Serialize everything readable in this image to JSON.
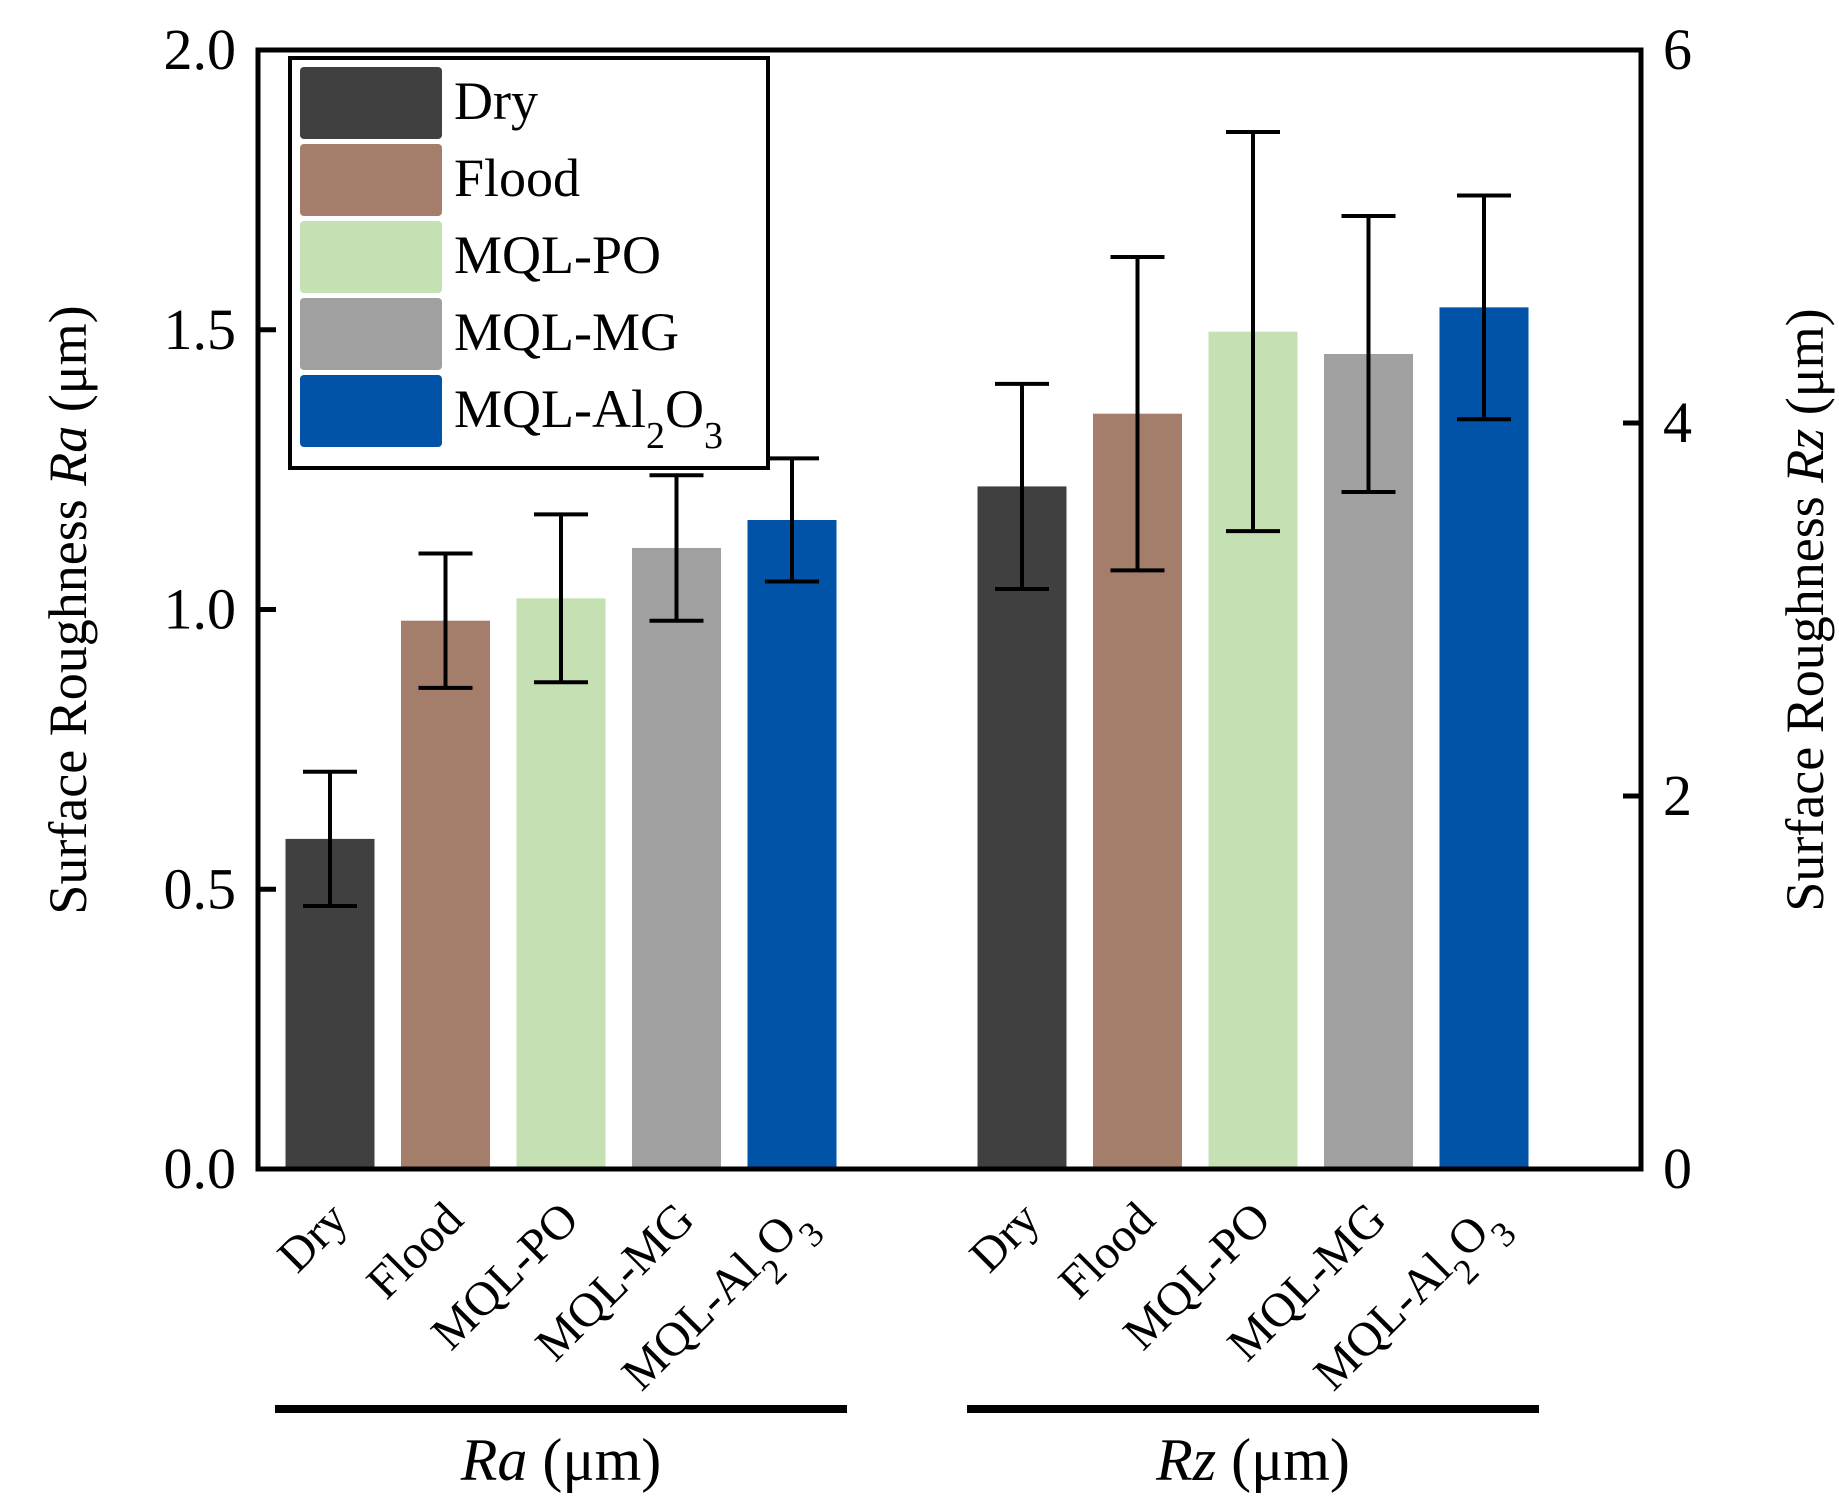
{
  "chart_data": {
    "type": "bar",
    "categories": [
      "Dry",
      "Flood",
      "MQL-PO",
      "MQL-MG",
      "MQL-Al2O3"
    ],
    "category_labels": [
      {
        "main": "Dry"
      },
      {
        "main": "Flood"
      },
      {
        "main": "MQL-PO"
      },
      {
        "main": "MQL-MG"
      },
      {
        "main": "MQL-Al",
        "sub": "2",
        "main2": "O",
        "sub2": "3"
      }
    ],
    "colors": [
      "#404040",
      "#a47e6b",
      "#c5e1b4",
      "#a0a0a0",
      "#0053a6"
    ],
    "left_axis": {
      "label_prefix": "Surface Roughness ",
      "label_italic": "Ra",
      "label_suffix": " (μm)",
      "ylim": [
        0,
        2.0
      ],
      "ticks": [
        "0.0",
        "0.5",
        "1.0",
        "1.5",
        "2.0"
      ]
    },
    "right_axis": {
      "label_prefix": "Surface Roughness ",
      "label_italic": "Rz",
      "label_suffix": " (μm)",
      "ylim": [
        0,
        6
      ],
      "ticks": [
        "0",
        "2",
        "4",
        "6"
      ]
    },
    "groups": [
      {
        "name_italic": "Ra",
        "name_suffix": " (μm)",
        "axis": "left",
        "values": [
          0.59,
          0.98,
          1.02,
          1.11,
          1.16
        ],
        "errors": [
          0.12,
          0.12,
          0.15,
          0.13,
          0.11
        ]
      },
      {
        "name_italic": "Rz",
        "name_suffix": " (μm)",
        "axis": "right",
        "values": [
          3.66,
          4.05,
          4.49,
          4.37,
          4.62
        ],
        "errors": [
          0.55,
          0.84,
          1.07,
          0.74,
          0.6
        ]
      }
    ],
    "legend": {
      "position": "top-left",
      "entries": [
        {
          "main": "Dry"
        },
        {
          "main": "Flood"
        },
        {
          "main": "MQL-PO"
        },
        {
          "main": "MQL-MG"
        },
        {
          "main": "MQL-Al",
          "sub": "2",
          "main2": "O",
          "sub2": "3"
        }
      ]
    }
  }
}
